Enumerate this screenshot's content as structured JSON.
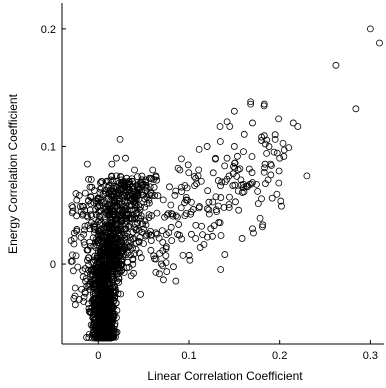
{
  "chart_data": {
    "type": "scatter",
    "title": "",
    "xlabel": "Linear Correlation Coefficient",
    "ylabel": "Energy Correlation Coefficient",
    "xlim": [
      -0.04,
      0.315
    ],
    "ylim": [
      -0.068,
      0.222
    ],
    "xticks": [
      {
        "value": 0,
        "label": "0"
      },
      {
        "value": 0.1,
        "label": "0.1"
      },
      {
        "value": 0.2,
        "label": "0.2"
      },
      {
        "value": 0.3,
        "label": "0.3"
      }
    ],
    "yticks": [
      {
        "value": 0,
        "label": "0"
      },
      {
        "value": 0.1,
        "label": "0.1"
      },
      {
        "value": 0.2,
        "label": "0.2"
      }
    ],
    "grid": false,
    "marker": "open-circle",
    "marker_color": "#000000",
    "outlier_points": [
      [
        0.3,
        0.2
      ],
      [
        0.31,
        0.188
      ],
      [
        0.262,
        0.169
      ],
      [
        0.284,
        0.132
      ],
      [
        0.215,
        0.12
      ],
      [
        0.22,
        0.117
      ],
      [
        0.195,
        0.11
      ],
      [
        0.195,
        0.106
      ],
      [
        0.18,
        0.108
      ],
      [
        0.18,
        0.105
      ],
      [
        0.168,
        0.138
      ],
      [
        0.168,
        0.136
      ],
      [
        0.15,
        0.13
      ],
      [
        0.17,
        0.12
      ],
      [
        0.2,
        0.09
      ],
      [
        0.23,
        0.075
      ],
      [
        0.21,
        0.099
      ],
      [
        0.205,
        0.097
      ],
      [
        0.19,
        0.085
      ],
      [
        0.15,
        0.1
      ],
      [
        0.142,
        0.121
      ],
      [
        0.145,
        0.117
      ],
      [
        0.12,
        0.1
      ],
      [
        0.142,
        0.09
      ],
      [
        0.14,
        0.07
      ],
      [
        0.16,
        0.065
      ],
      [
        0.11,
        0.075
      ],
      [
        0.09,
        0.08
      ],
      [
        0.06,
        0.08
      ],
      [
        0.03,
        0.09
      ],
      [
        0.04,
        0.08
      ],
      [
        0.02,
        0.09
      ],
      [
        0.024,
        0.106
      ],
      [
        0.015,
        0.085
      ],
      [
        -0.012,
        0.085
      ],
      [
        0.02,
        0.075
      ],
      [
        0.03,
        0.07
      ],
      [
        -0.028,
        0.045
      ],
      [
        -0.024,
        0.041
      ],
      [
        -0.03,
        0.02
      ],
      [
        0.17,
        0.03
      ],
      [
        0.115,
        0.025
      ],
      [
        0.075,
        0.025
      ],
      [
        0.05,
        0.03
      ]
    ],
    "cluster": {
      "count": 1500,
      "x_center": 0.006,
      "x_spread": 0.008,
      "y_min": -0.063,
      "y_max": 0.075,
      "spine_slope": 0.6
    }
  }
}
